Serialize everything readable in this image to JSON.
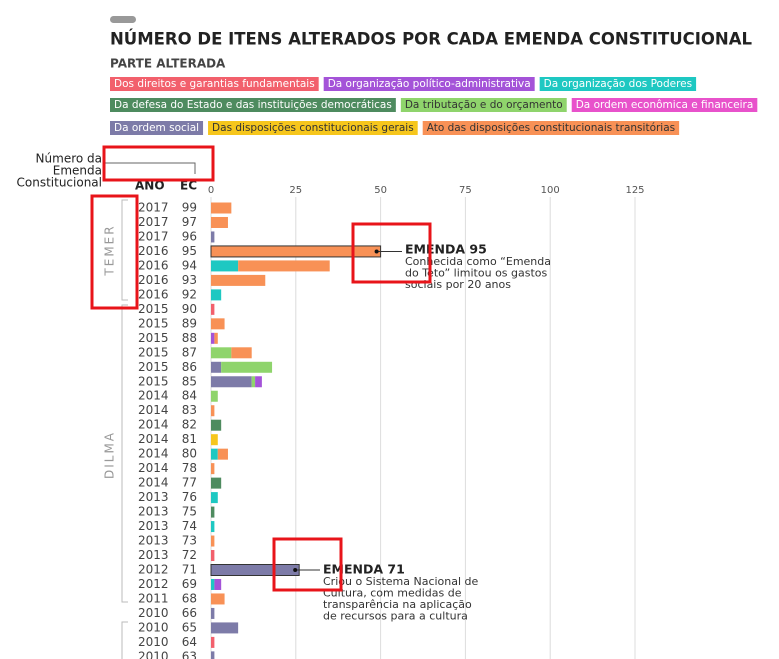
{
  "chart_data": {
    "type": "bar",
    "orientation": "horizontal",
    "stacked": true,
    "title": "NÚMERO DE ITENS ALTERADOS POR CADA EMENDA CONSTITUCIONAL",
    "legend_title": "PARTE ALTERADA",
    "y_axis_label": "Número da Emenda Constitucional",
    "year_header": "ANO",
    "ec_header": "EC",
    "categories": [
      "99",
      "97",
      "96",
      "95",
      "94",
      "93",
      "92",
      "90",
      "89",
      "88",
      "87",
      "86",
      "85",
      "84",
      "83",
      "82",
      "81",
      "80",
      "78",
      "77",
      "76",
      "75",
      "74",
      "73",
      "72",
      "71",
      "69",
      "68",
      "66",
      "65",
      "64",
      "63"
    ],
    "years": [
      2017,
      2017,
      2017,
      2016,
      2016,
      2016,
      2016,
      2015,
      2015,
      2015,
      2015,
      2015,
      2015,
      2014,
      2014,
      2014,
      2014,
      2014,
      2014,
      2014,
      2013,
      2013,
      2013,
      2013,
      2013,
      2012,
      2012,
      2011,
      2010,
      2010,
      2010,
      2010
    ],
    "eras": [
      "TEMER",
      "DILMA"
    ],
    "xlim": [
      0,
      125
    ],
    "xticks": [
      0,
      25,
      50,
      75,
      100,
      125
    ],
    "grid": true,
    "series": [
      {
        "name": "Da ordem social",
        "color": "#7d7ba8",
        "values": [
          0,
          0,
          1,
          0,
          0,
          0,
          0,
          0,
          0,
          0,
          0,
          3,
          12,
          0,
          0,
          0,
          0,
          0,
          0,
          0,
          0,
          0,
          0,
          0,
          0,
          26,
          0,
          0,
          1,
          8,
          0,
          1
        ]
      },
      {
        "name": "Dos direitos e garantias fundamentais",
        "color": "#f2606c",
        "values": [
          0,
          0,
          0,
          0,
          0,
          0,
          0,
          1,
          0,
          0,
          0,
          0,
          0,
          0,
          0,
          0,
          0,
          0,
          0,
          0,
          0,
          0,
          0,
          0,
          1,
          0,
          0,
          0,
          0,
          0,
          1,
          0
        ]
      },
      {
        "name": "Da organização dos Poderes",
        "color": "#1ec8c2",
        "values": [
          0,
          0,
          0,
          0,
          8,
          0,
          3,
          0,
          0,
          0,
          0,
          0,
          0,
          0,
          0,
          0,
          0,
          2,
          0,
          0,
          2,
          0,
          1,
          0,
          0,
          0,
          1,
          0,
          0,
          0,
          0,
          0
        ]
      },
      {
        "name": "Da defesa do Estado e das instituições democráticas",
        "color": "#4e8b5f",
        "values": [
          0,
          0,
          0,
          0,
          0,
          0,
          0,
          0,
          0,
          0,
          0,
          0,
          0,
          0,
          0,
          3,
          0,
          0,
          0,
          3,
          0,
          1,
          0,
          0,
          0,
          0,
          0,
          0,
          0,
          0,
          0,
          0
        ]
      },
      {
        "name": "Da tributação e do orçamento",
        "color": "#8fd46c",
        "values": [
          0,
          0,
          0,
          0,
          0,
          0,
          0,
          0,
          0,
          0,
          6,
          15,
          1,
          2,
          0,
          0,
          0,
          0,
          0,
          0,
          0,
          0,
          0,
          0,
          0,
          0,
          0,
          0,
          0,
          0,
          0,
          0
        ]
      },
      {
        "name": "Da organização político-administrativa",
        "color": "#a453d8",
        "values": [
          0,
          0,
          0,
          0,
          0,
          0,
          0,
          0,
          0,
          1,
          0,
          0,
          2,
          0,
          0,
          0,
          0,
          0,
          0,
          0,
          0,
          0,
          0,
          0,
          0,
          0,
          2,
          0,
          0,
          0,
          0,
          0
        ]
      },
      {
        "name": "Da ordem econômica e financeira",
        "color": "#e852cb",
        "values": [
          0,
          0,
          0,
          0,
          0,
          0,
          0,
          0,
          0,
          0,
          0,
          0,
          0,
          0,
          0,
          0,
          0,
          0,
          0,
          0,
          0,
          0,
          0,
          0,
          0,
          0,
          0,
          0,
          0,
          0,
          0,
          0
        ]
      },
      {
        "name": "Das disposições constitucionais gerais",
        "color": "#f6c61c",
        "values": [
          0,
          0,
          0,
          0,
          0,
          0,
          0,
          0,
          0,
          0,
          0,
          0,
          0,
          0,
          0,
          0,
          2,
          0,
          0,
          0,
          0,
          0,
          0,
          0,
          0,
          0,
          0,
          0,
          0,
          0,
          0,
          0
        ]
      },
      {
        "name": "Ato das disposições constitucionais transitórias",
        "color": "#f89156",
        "values": [
          6,
          5,
          0,
          50,
          27,
          16,
          0,
          0,
          4,
          1,
          6,
          0,
          0,
          0,
          1,
          0,
          0,
          3,
          1,
          0,
          0,
          0,
          0,
          1,
          0,
          0,
          0,
          4,
          0,
          0,
          0,
          0
        ]
      }
    ],
    "annotations": [
      {
        "title": "EMENDA 95",
        "lines": [
          "Conhecida como “Emenda",
          "do Teto” limitou os gastos",
          "sociais por 20 anos"
        ]
      },
      {
        "title": "EMENDA 71",
        "lines": [
          "Criou o Sistema Nacional de",
          "Cultura, com medidas de",
          "transparência na aplicação",
          "de recursos para a cultura"
        ]
      }
    ]
  }
}
